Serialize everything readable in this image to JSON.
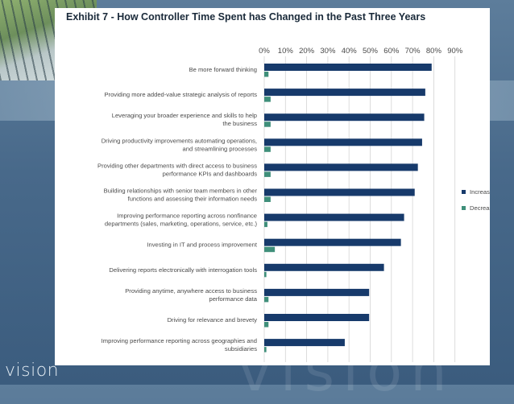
{
  "branding": {
    "logo_text": "vision",
    "watermark_text": "vision"
  },
  "chart_data": {
    "type": "bar",
    "orientation": "horizontal",
    "title": "Exhibit 7 - How Controller Time Spent has Changed in the Past Three Years",
    "xlim": [
      0,
      90
    ],
    "x_ticks": [
      "0%",
      "10%",
      "20%",
      "30%",
      "40%",
      "50%",
      "60%",
      "70%",
      "80%",
      "90%"
    ],
    "grid": true,
    "legend_position": "right",
    "categories": [
      [
        "Be more forward thinking"
      ],
      [
        "Providing more added-value strategic analysis of reports"
      ],
      [
        "Leveraging your broader experience and skills to help",
        "the business"
      ],
      [
        "Driving productivity improvements automating operations,",
        "and streamlining processes"
      ],
      [
        "Providing other departments with direct access to business",
        "performance KPIs and dashboards"
      ],
      [
        "Building relationships with senior team members in other",
        "functions and assessing their information needs"
      ],
      [
        "Improving performance reporting across nonfinance",
        "departments (sales, marketing, operations, service, etc.)"
      ],
      [
        "Investing in IT and process improvement"
      ],
      [
        "Delivering reports electronically with interrogation tools"
      ],
      [
        "Providing anytime, anywhere access to business",
        "performance data"
      ],
      [
        "Driving for relevance and brevety"
      ],
      [
        "Improving performance reporting across geographies and",
        "subsidiaries"
      ]
    ],
    "series": [
      {
        "name": "Increase",
        "color": "#173a6b",
        "values": [
          79,
          76,
          75.5,
          74.5,
          72.5,
          71,
          66,
          64.5,
          56.5,
          49.5,
          49.5,
          38
        ]
      },
      {
        "name": "Decrease",
        "color": "#3f8f7a",
        "values": [
          2,
          3,
          3,
          3,
          3,
          3,
          1.5,
          5,
          1,
          2,
          2,
          1
        ]
      }
    ]
  }
}
